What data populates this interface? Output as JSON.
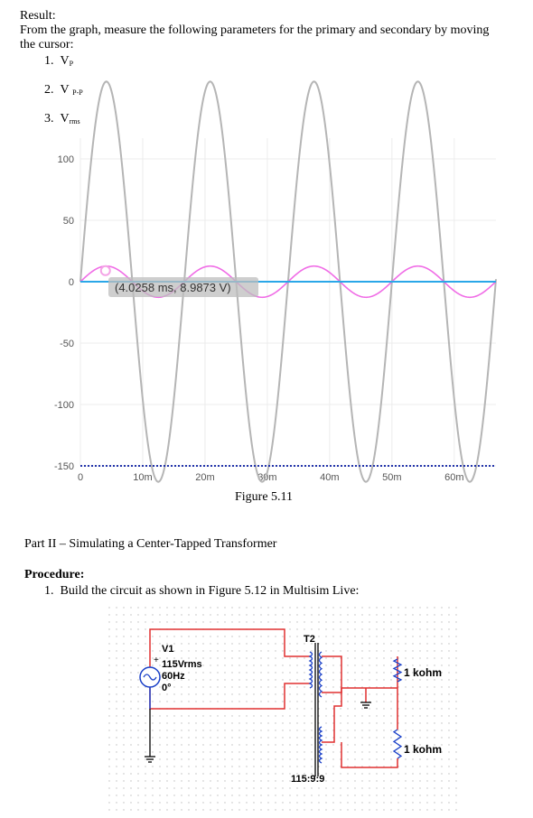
{
  "result": {
    "heading": "Result:",
    "instruction_line1": "From the graph, measure the following parameters for the primary and secondary by moving",
    "instruction_line2": "the cursor:",
    "items": [
      {
        "num": "1.",
        "label": "V",
        "sub": "P"
      },
      {
        "num": "2.",
        "label": "V",
        "sub": "P-P"
      },
      {
        "num": "3.",
        "label": "V",
        "sub": "rms"
      }
    ]
  },
  "chart_data": {
    "type": "line",
    "cursor_readout": "(4.0258 ms, 8.9873 V)",
    "y_ticks": [
      "100",
      "50",
      "0",
      "-50",
      "-100",
      "-150"
    ],
    "x_ticks": [
      "0",
      "10m",
      "20m",
      "30m",
      "40m",
      "50m",
      "60m"
    ],
    "xlim": [
      0,
      0.0667
    ],
    "ylim": [
      -150,
      100
    ],
    "grid": true,
    "series": [
      {
        "color": "#b5b5b5",
        "amplitude": 163,
        "frequency_hz": 60,
        "x_unit": "s",
        "y_unit": "V"
      },
      {
        "color": "#f06ce6",
        "amplitude": 12.7,
        "frequency_hz": 60,
        "x_unit": "s",
        "y_unit": "V"
      },
      {
        "color": "#7a1fd1",
        "constant": 0
      },
      {
        "color": "#2aa7e8",
        "constant": 0
      },
      {
        "color": "#2233aa",
        "constant": -150,
        "style": "dotted"
      }
    ],
    "cursor_marker_color": "#f4a3e6"
  },
  "figure_caption": "Figure 5.11",
  "part2_title": "Part II – Simulating a Center-Tapped Transformer",
  "procedure": {
    "heading": "Procedure:",
    "step_num": "1.",
    "step_text": "Build the circuit as shown in Figure 5.12 in Multisim Live:"
  },
  "schematic": {
    "source_name": "V1",
    "source_voltage": "115Vrms",
    "source_freq": "60Hz",
    "source_phase": "0°",
    "plus_sign": "+",
    "transformer_name": "T2",
    "transformer_ratio": "115:9:9",
    "resistor1": "1 kohm",
    "resistor2": "1 kohm",
    "wire_color": "#e03030",
    "component_color": "#1a40c8"
  }
}
